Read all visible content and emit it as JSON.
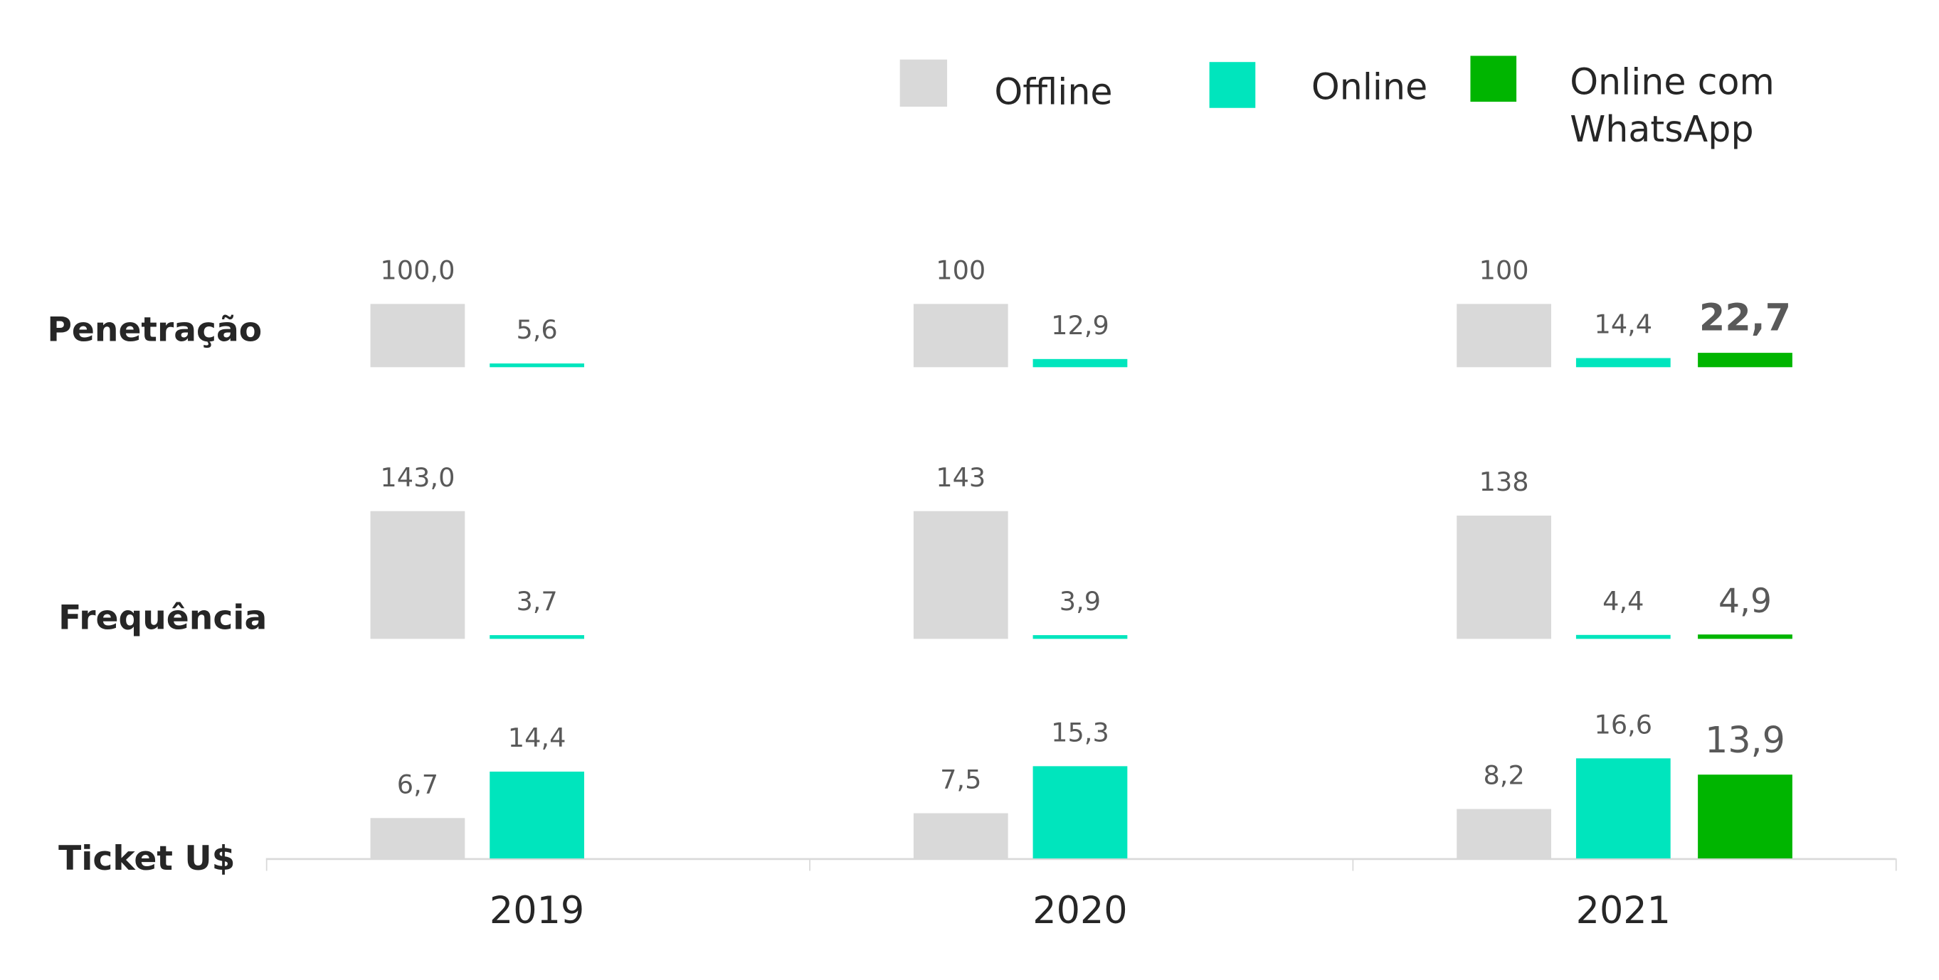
{
  "chart_data": {
    "type": "bar",
    "categories": [
      "2019",
      "2020",
      "2021"
    ],
    "rows": [
      "Penetração",
      "Frequência",
      "Ticket U$"
    ],
    "legend": {
      "placement": "top-right"
    },
    "series": [
      {
        "name": "Offline",
        "color": "#d9d9d9",
        "values": {
          "Penetração": [
            100,
            100,
            100
          ],
          "Frequência": [
            143,
            143,
            138
          ],
          "Ticket U$": [
            6.7,
            7.5,
            8.2
          ]
        },
        "labels": {
          "Penetração": [
            "100,0",
            "100",
            "100"
          ],
          "Frequência": [
            "143,0",
            "143",
            "138"
          ],
          "Ticket U$": [
            "6,7",
            "7,5",
            "8,2"
          ]
        }
      },
      {
        "name": "Online",
        "color": "#00e5bd",
        "values": {
          "Penetração": [
            5.6,
            12.9,
            14.4
          ],
          "Frequência": [
            3.7,
            3.9,
            4.4
          ],
          "Ticket U$": [
            14.4,
            15.3,
            16.6
          ]
        },
        "labels": {
          "Penetração": [
            "5,6",
            "12,9",
            "14,4"
          ],
          "Frequência": [
            "3,7",
            "3,9",
            "4,4"
          ],
          "Ticket U$": [
            "14,4",
            "15,3",
            "16,6"
          ]
        }
      },
      {
        "name": "Online com WhatsApp",
        "name_lines": [
          "Online com",
          "WhatsApp"
        ],
        "color": "#00b500",
        "values": {
          "Penetração": [
            null,
            null,
            22.7
          ],
          "Frequência": [
            null,
            null,
            4.9
          ],
          "Ticket U$": [
            null,
            null,
            13.9
          ]
        },
        "labels": {
          "Penetração": [
            "",
            "",
            "22,7"
          ],
          "Frequência": [
            "",
            "",
            "4,9"
          ],
          "Ticket U$": [
            "",
            "",
            "13,9"
          ]
        }
      }
    ]
  }
}
